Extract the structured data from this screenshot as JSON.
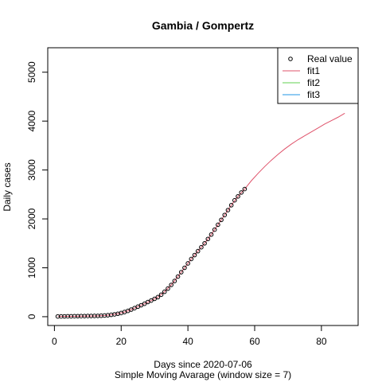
{
  "chart_data": {
    "type": "scatter",
    "title": "Gambia / Gompertz",
    "xlabel": "Days since 2020-07-06",
    "xlabel2": "Simple Moving Avarage (window size = 7)",
    "ylabel": "Daily cases",
    "xlim": [
      -2,
      91
    ],
    "ylim": [
      -180,
      5500
    ],
    "xticks": [
      0,
      20,
      40,
      60,
      80
    ],
    "yticks": [
      0,
      1000,
      2000,
      3000,
      4000,
      5000
    ],
    "legend_position": "top-right",
    "legend": [
      {
        "label": "Real value",
        "kind": "point",
        "color": "#000000"
      },
      {
        "label": "fit1",
        "kind": "line",
        "color": "#DF536B"
      },
      {
        "label": "fit2",
        "kind": "line",
        "color": "#61D04F"
      },
      {
        "label": "fit3",
        "kind": "line",
        "color": "#2297E6"
      }
    ],
    "series": [
      {
        "name": "Real value",
        "kind": "point",
        "color": "#000000",
        "x": [
          1,
          2,
          3,
          4,
          5,
          6,
          7,
          8,
          9,
          10,
          11,
          12,
          13,
          14,
          15,
          16,
          17,
          18,
          19,
          20,
          21,
          22,
          23,
          24,
          25,
          26,
          27,
          28,
          29,
          30,
          31,
          32,
          33,
          34,
          35,
          36,
          37,
          38,
          39,
          40,
          41,
          42,
          43,
          44,
          45,
          46,
          47,
          48,
          49,
          50,
          51,
          52,
          53,
          54,
          55,
          56,
          57
        ],
        "y": [
          5,
          6,
          7,
          8,
          9,
          10,
          11,
          12,
          13,
          14,
          15,
          16,
          17,
          20,
          24,
          30,
          38,
          48,
          60,
          75,
          95,
          118,
          145,
          175,
          205,
          235,
          265,
          300,
          330,
          365,
          400,
          450,
          510,
          575,
          650,
          730,
          820,
          910,
          1000,
          1090,
          1180,
          1260,
          1340,
          1420,
          1500,
          1590,
          1680,
          1780,
          1880,
          1980,
          2080,
          2180,
          2280,
          2380,
          2460,
          2540,
          2610
        ]
      },
      {
        "name": "fit1",
        "kind": "line",
        "color": "#DF536B",
        "x": [
          1,
          3,
          5,
          7,
          9,
          11,
          13,
          15,
          17,
          19,
          21,
          23,
          25,
          27,
          29,
          31,
          33,
          35,
          37,
          39,
          41,
          43,
          45,
          47,
          49,
          51,
          53,
          55,
          57,
          59,
          61,
          63,
          65,
          67,
          69,
          71,
          73,
          75,
          77,
          79,
          81,
          83,
          85,
          87
        ],
        "y": [
          5,
          7,
          8,
          10,
          12,
          14,
          17,
          23,
          38,
          60,
          95,
          145,
          205,
          265,
          330,
          400,
          510,
          650,
          820,
          1000,
          1180,
          1340,
          1500,
          1680,
          1880,
          2080,
          2280,
          2460,
          2610,
          2780,
          2930,
          3070,
          3200,
          3320,
          3430,
          3530,
          3620,
          3700,
          3780,
          3860,
          3940,
          4010,
          4080,
          4160
        ]
      }
    ]
  }
}
